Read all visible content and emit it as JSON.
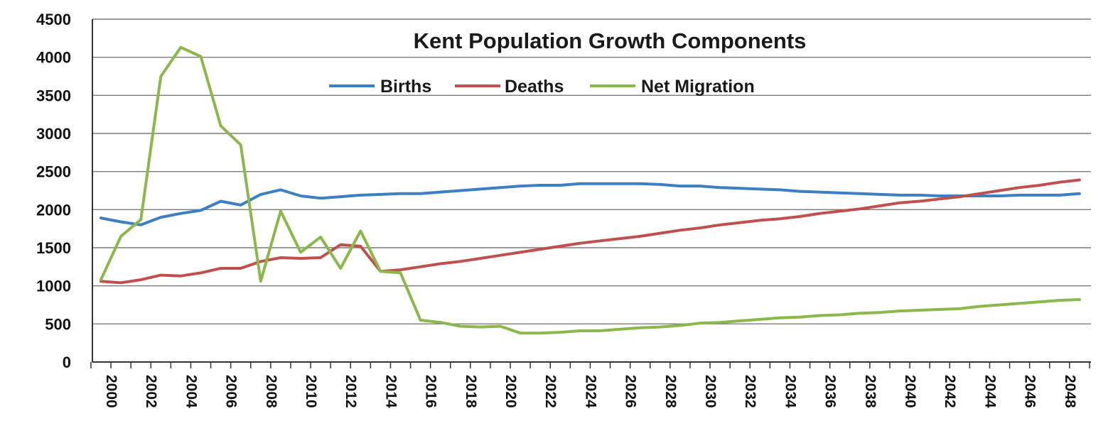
{
  "chart_data": {
    "type": "line",
    "title": "Kent Population Growth Components",
    "xlabel": "",
    "ylabel": "",
    "ylim": [
      0,
      4500
    ],
    "yticks": [
      0,
      500,
      1000,
      1500,
      2000,
      2500,
      3000,
      3500,
      4000,
      4500
    ],
    "xlim": [
      2000,
      2049
    ],
    "xticks": [
      2000,
      2002,
      2004,
      2006,
      2008,
      2010,
      2012,
      2014,
      2016,
      2018,
      2020,
      2022,
      2024,
      2026,
      2028,
      2030,
      2032,
      2034,
      2036,
      2038,
      2040,
      2042,
      2044,
      2046,
      2048
    ],
    "grid": "horizontal",
    "legend_position": "top-center",
    "x": [
      2000,
      2001,
      2002,
      2003,
      2004,
      2005,
      2006,
      2007,
      2008,
      2009,
      2010,
      2011,
      2012,
      2013,
      2014,
      2015,
      2016,
      2017,
      2018,
      2019,
      2020,
      2021,
      2022,
      2023,
      2024,
      2025,
      2026,
      2027,
      2028,
      2029,
      2030,
      2031,
      2032,
      2033,
      2034,
      2035,
      2036,
      2037,
      2038,
      2039,
      2040,
      2041,
      2042,
      2043,
      2044,
      2045,
      2046,
      2047,
      2048,
      2049
    ],
    "series": [
      {
        "name": "Births",
        "color": "#3b7fc4",
        "values": [
          1890,
          1840,
          1800,
          1900,
          1950,
          1990,
          2110,
          2060,
          2200,
          2260,
          2180,
          2150,
          2170,
          2190,
          2200,
          2210,
          2210,
          2230,
          2250,
          2270,
          2290,
          2310,
          2320,
          2320,
          2340,
          2340,
          2340,
          2340,
          2330,
          2310,
          2310,
          2290,
          2280,
          2270,
          2260,
          2240,
          2230,
          2220,
          2210,
          2200,
          2190,
          2190,
          2180,
          2180,
          2180,
          2180,
          2190,
          2190,
          2190,
          2210
        ]
      },
      {
        "name": "Deaths",
        "color": "#c0504d",
        "values": [
          1060,
          1040,
          1080,
          1140,
          1130,
          1170,
          1230,
          1230,
          1320,
          1370,
          1360,
          1370,
          1540,
          1520,
          1190,
          1210,
          1250,
          1290,
          1320,
          1360,
          1400,
          1440,
          1480,
          1520,
          1560,
          1590,
          1620,
          1650,
          1690,
          1730,
          1760,
          1800,
          1830,
          1860,
          1880,
          1910,
          1950,
          1980,
          2010,
          2050,
          2090,
          2110,
          2140,
          2170,
          2210,
          2250,
          2290,
          2320,
          2360,
          2390
        ]
      },
      {
        "name": "Net Migration",
        "color": "#8ab84a",
        "values": [
          1080,
          1650,
          1870,
          3750,
          4130,
          4010,
          3100,
          2850,
          1060,
          1980,
          1440,
          1640,
          1230,
          1720,
          1190,
          1170,
          550,
          520,
          470,
          460,
          470,
          380,
          380,
          390,
          410,
          410,
          430,
          450,
          460,
          480,
          510,
          520,
          540,
          560,
          580,
          590,
          610,
          620,
          640,
          650,
          670,
          680,
          690,
          700,
          730,
          750,
          770,
          790,
          810,
          820
        ]
      }
    ]
  }
}
